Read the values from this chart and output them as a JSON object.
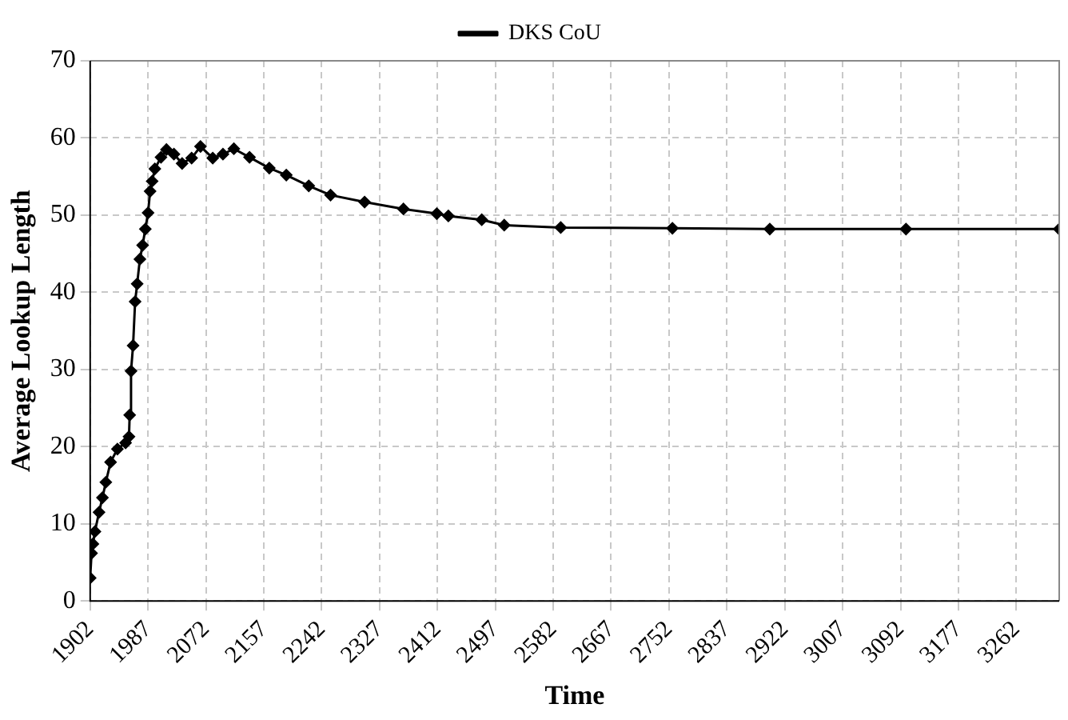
{
  "chart_data": {
    "type": "line",
    "xlabel": "Time",
    "ylabel": "Average Lookup Length",
    "x": [
      1902,
      1904,
      1906,
      1909,
      1915,
      1920,
      1925,
      1932,
      1942,
      1954,
      1959,
      1960,
      1962,
      1965,
      1968,
      1971,
      1975,
      1979,
      1983,
      1987,
      1990,
      1993,
      1997,
      2006,
      2014,
      2025,
      2037,
      2051,
      2064,
      2082,
      2097,
      2113,
      2136,
      2165,
      2190,
      2223,
      2255,
      2305,
      2362,
      2411,
      2428,
      2477,
      2510,
      2593,
      2757,
      2900,
      3100,
      3325
    ],
    "series": [
      {
        "name": "DKS CoU",
        "color": "#000000",
        "values": [
          3.0,
          6.2,
          7.4,
          9.0,
          11.5,
          13.4,
          15.4,
          18.0,
          19.7,
          20.5,
          21.3,
          24.1,
          29.8,
          33.1,
          38.8,
          41.1,
          44.3,
          46.1,
          48.2,
          50.3,
          53.1,
          54.4,
          56.0,
          57.5,
          58.5,
          57.9,
          56.7,
          57.4,
          58.9,
          57.4,
          57.9,
          58.6,
          57.5,
          56.1,
          55.2,
          53.8,
          52.6,
          51.7,
          50.8,
          50.2,
          49.9,
          49.4,
          48.7,
          48.4,
          48.3,
          48.2,
          48.2,
          48.2
        ]
      }
    ],
    "xlim": [
      1902,
      3325
    ],
    "xticks": [
      1902,
      1987,
      2072,
      2157,
      2242,
      2327,
      2412,
      2497,
      2582,
      2667,
      2752,
      2837,
      2922,
      3007,
      3092,
      3177,
      3262
    ],
    "ylim": [
      0,
      70
    ],
    "yticks": [
      0,
      10,
      20,
      30,
      40,
      50,
      60,
      70
    ],
    "grid": true,
    "legend": "top",
    "marker": "diamond",
    "line_style": "solid"
  }
}
